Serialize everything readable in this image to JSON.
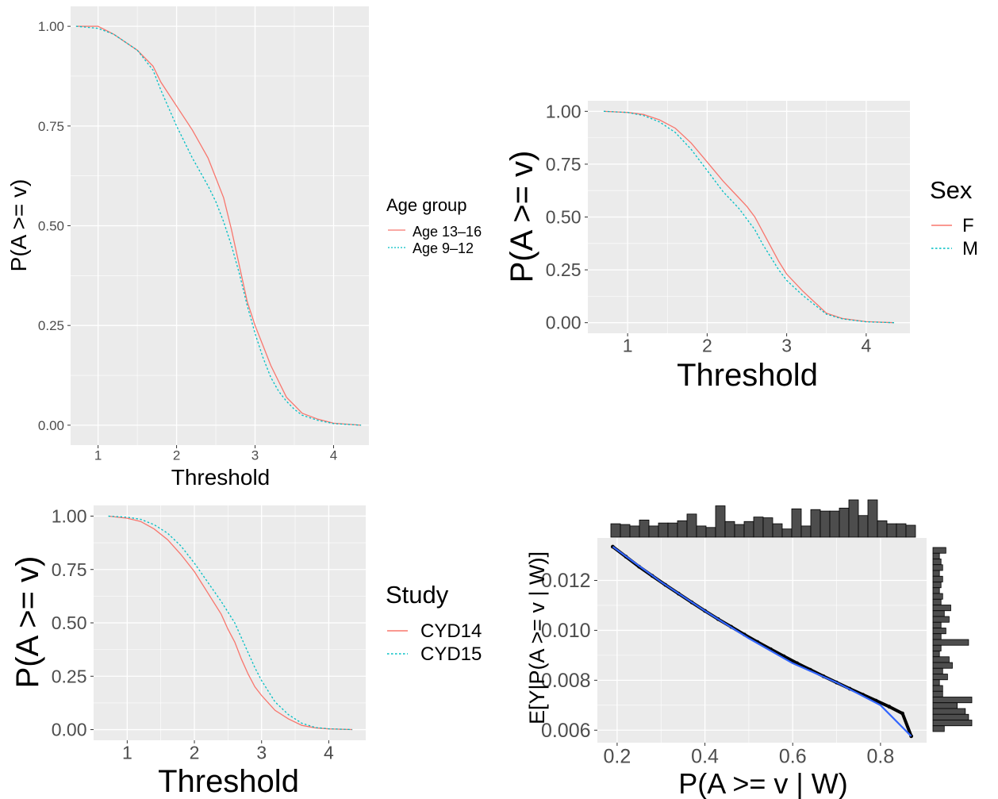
{
  "chart_data": [
    {
      "type": "line",
      "id": "age",
      "xlabel": "Threshold",
      "ylabel": "P(A >= v)",
      "xlim": [
        0.65,
        4.45
      ],
      "ylim": [
        -0.05,
        1.05
      ],
      "xticks": [
        1,
        2,
        3,
        4
      ],
      "xtick_labels": [
        "1",
        "2",
        "3",
        "4"
      ],
      "yticks": [
        0,
        0.25,
        0.5,
        0.75,
        1.0
      ],
      "ytick_labels": [
        "0.00",
        "0.25",
        "0.50",
        "0.75",
        "1.00"
      ],
      "legend_title": "Age group",
      "legend_position": "right",
      "series": [
        {
          "name": "Age 13–16",
          "color": "#F8766D",
          "dash": "solid",
          "x": [
            0.72,
            1.0,
            1.2,
            1.5,
            1.7,
            1.8,
            2.0,
            2.2,
            2.4,
            2.5,
            2.6,
            2.7,
            2.8,
            2.9,
            3.0,
            3.1,
            3.2,
            3.3,
            3.4,
            3.5,
            3.6,
            3.8,
            4.0,
            4.35
          ],
          "y": [
            1.0,
            1.0,
            0.98,
            0.94,
            0.9,
            0.86,
            0.8,
            0.74,
            0.67,
            0.62,
            0.57,
            0.49,
            0.4,
            0.31,
            0.25,
            0.2,
            0.15,
            0.11,
            0.07,
            0.05,
            0.03,
            0.015,
            0.005,
            0.0
          ]
        },
        {
          "name": "Age 9–12",
          "color": "#00BFC4",
          "dash": "dotted",
          "x": [
            0.72,
            1.0,
            1.2,
            1.5,
            1.7,
            1.8,
            2.0,
            2.2,
            2.4,
            2.5,
            2.6,
            2.7,
            2.8,
            2.9,
            3.0,
            3.1,
            3.2,
            3.3,
            3.4,
            3.5,
            3.6,
            3.8,
            4.0,
            4.35
          ],
          "y": [
            1.0,
            0.995,
            0.98,
            0.94,
            0.89,
            0.84,
            0.75,
            0.67,
            0.6,
            0.56,
            0.51,
            0.45,
            0.38,
            0.3,
            0.23,
            0.17,
            0.12,
            0.085,
            0.06,
            0.04,
            0.025,
            0.012,
            0.004,
            0.0
          ]
        }
      ]
    },
    {
      "type": "line",
      "id": "sex",
      "xlabel": "Threshold",
      "ylabel": "P(A >= v)",
      "xlim": [
        0.5,
        4.55
      ],
      "ylim": [
        -0.05,
        1.05
      ],
      "xticks": [
        1,
        2,
        3,
        4
      ],
      "xtick_labels": [
        "1",
        "2",
        "3",
        "4"
      ],
      "yticks": [
        0,
        0.25,
        0.5,
        0.75,
        1.0
      ],
      "ytick_labels": [
        "0.00",
        "0.25",
        "0.50",
        "0.75",
        "1.00"
      ],
      "legend_title": "Sex",
      "legend_position": "right",
      "series": [
        {
          "name": "F",
          "color": "#F8766D",
          "dash": "solid",
          "x": [
            0.7,
            1.0,
            1.2,
            1.4,
            1.6,
            1.8,
            2.0,
            2.2,
            2.4,
            2.5,
            2.6,
            2.7,
            2.8,
            2.9,
            3.0,
            3.2,
            3.4,
            3.5,
            3.7,
            4.0,
            4.35
          ],
          "y": [
            1.0,
            0.995,
            0.985,
            0.96,
            0.92,
            0.85,
            0.76,
            0.67,
            0.59,
            0.55,
            0.5,
            0.43,
            0.36,
            0.29,
            0.23,
            0.15,
            0.08,
            0.045,
            0.02,
            0.005,
            0.0
          ]
        },
        {
          "name": "M",
          "color": "#00BFC4",
          "dash": "dotted",
          "x": [
            0.7,
            1.0,
            1.2,
            1.4,
            1.6,
            1.8,
            2.0,
            2.2,
            2.4,
            2.5,
            2.6,
            2.7,
            2.8,
            2.9,
            3.0,
            3.2,
            3.4,
            3.5,
            3.7,
            4.0,
            4.35
          ],
          "y": [
            1.0,
            0.995,
            0.98,
            0.95,
            0.9,
            0.82,
            0.72,
            0.62,
            0.54,
            0.49,
            0.44,
            0.37,
            0.31,
            0.25,
            0.2,
            0.13,
            0.07,
            0.04,
            0.018,
            0.004,
            0.0
          ]
        }
      ]
    },
    {
      "type": "line",
      "id": "study",
      "xlabel": "Threshold",
      "ylabel": "P(A >= v)",
      "xlim": [
        0.5,
        4.55
      ],
      "ylim": [
        -0.05,
        1.05
      ],
      "xticks": [
        1,
        2,
        3,
        4
      ],
      "xtick_labels": [
        "1",
        "2",
        "3",
        "4"
      ],
      "yticks": [
        0,
        0.25,
        0.5,
        0.75,
        1.0
      ],
      "ytick_labels": [
        "0.00",
        "0.25",
        "0.50",
        "0.75",
        "1.00"
      ],
      "legend_title": "Study",
      "legend_position": "right",
      "series": [
        {
          "name": "CYD14",
          "color": "#F8766D",
          "dash": "solid",
          "x": [
            0.72,
            1.0,
            1.2,
            1.4,
            1.6,
            1.8,
            2.0,
            2.2,
            2.4,
            2.5,
            2.6,
            2.7,
            2.8,
            2.9,
            3.0,
            3.2,
            3.4,
            3.6,
            3.8,
            4.0,
            4.35
          ],
          "y": [
            1.0,
            0.99,
            0.975,
            0.94,
            0.89,
            0.82,
            0.74,
            0.64,
            0.54,
            0.47,
            0.41,
            0.33,
            0.26,
            0.2,
            0.16,
            0.09,
            0.05,
            0.02,
            0.008,
            0.003,
            0.0
          ]
        },
        {
          "name": "CYD15",
          "color": "#00BFC4",
          "dash": "dotted",
          "x": [
            0.72,
            1.0,
            1.2,
            1.4,
            1.6,
            1.8,
            2.0,
            2.2,
            2.4,
            2.5,
            2.6,
            2.7,
            2.8,
            2.9,
            3.0,
            3.2,
            3.4,
            3.6,
            3.8,
            4.0,
            4.35
          ],
          "y": [
            1.0,
            0.995,
            0.985,
            0.96,
            0.92,
            0.86,
            0.78,
            0.69,
            0.6,
            0.55,
            0.5,
            0.43,
            0.36,
            0.29,
            0.23,
            0.13,
            0.07,
            0.03,
            0.01,
            0.004,
            0.0
          ]
        }
      ]
    },
    {
      "type": "scatter",
      "id": "marginal",
      "xlabel": "P(A >= v | W)",
      "ylabel": "E[Y|P(A >= v | W)]",
      "xlim": [
        0.155,
        0.905
      ],
      "ylim": [
        0.0055,
        0.0137
      ],
      "xticks": [
        0.2,
        0.4,
        0.6,
        0.8
      ],
      "xtick_labels": [
        "0.2",
        "0.4",
        "0.6",
        "0.8"
      ],
      "yticks": [
        0.006,
        0.008,
        0.01,
        0.012
      ],
      "ytick_labels": [
        "0.006",
        "0.008",
        "0.010",
        "0.012"
      ],
      "points": {
        "color": "#000000",
        "x": [
          0.19,
          0.22,
          0.25,
          0.28,
          0.31,
          0.34,
          0.37,
          0.4,
          0.43,
          0.46,
          0.49,
          0.52,
          0.55,
          0.58,
          0.61,
          0.64,
          0.67,
          0.7,
          0.73,
          0.76,
          0.79,
          0.82,
          0.85,
          0.87
        ],
        "y": [
          0.01335,
          0.01295,
          0.01255,
          0.01218,
          0.01182,
          0.01147,
          0.01112,
          0.01078,
          0.01045,
          0.01014,
          0.00983,
          0.00953,
          0.00924,
          0.00896,
          0.00868,
          0.00842,
          0.00816,
          0.00791,
          0.00766,
          0.00742,
          0.00718,
          0.00694,
          0.00667,
          0.00576
        ]
      },
      "smooth": {
        "color": "#3366FF",
        "x": [
          0.19,
          0.3,
          0.4,
          0.5,
          0.6,
          0.7,
          0.8,
          0.87
        ],
        "y": [
          0.01335,
          0.01194,
          0.01078,
          0.00968,
          0.00868,
          0.00791,
          0.007,
          0.00576
        ]
      },
      "top_histogram": {
        "fill": "#4d4d4d",
        "counts": [
          18,
          17,
          15,
          23,
          15,
          19,
          19,
          22,
          31,
          15,
          13,
          42,
          21,
          17,
          21,
          27,
          26,
          18,
          11,
          38,
          15,
          37,
          35,
          35,
          39,
          50,
          29,
          50,
          22,
          18,
          18,
          16
        ]
      },
      "right_histogram": {
        "fill": "#4d4d4d",
        "counts": [
          8,
          4,
          5,
          6,
          4,
          6,
          5,
          4,
          6,
          5,
          11,
          7,
          10,
          5,
          8,
          5,
          22,
          5,
          4,
          10,
          12,
          6,
          9,
          4,
          6,
          6,
          24,
          15,
          20,
          22,
          24,
          7
        ]
      }
    }
  ]
}
